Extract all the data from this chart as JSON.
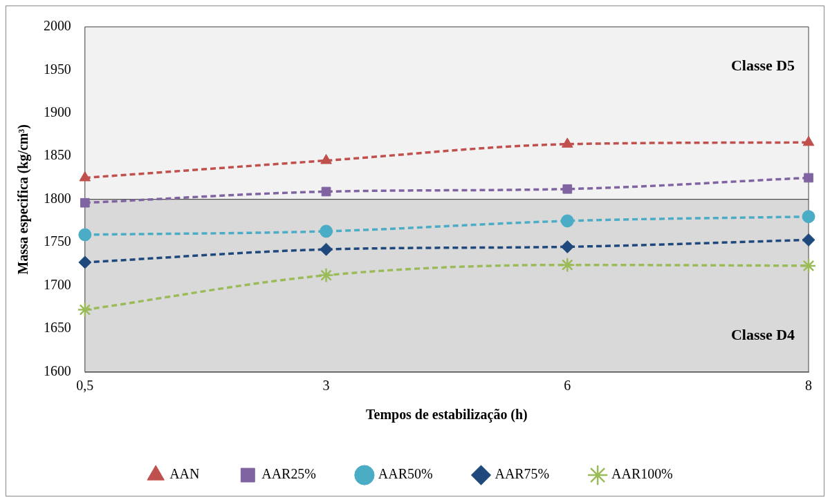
{
  "chart_data": {
    "type": "line",
    "xlabel": "Tempos de estabilização (h)",
    "ylabel": "Massa especifica (kg/cm³)",
    "categories": [
      "0,5",
      "3",
      "6",
      "8"
    ],
    "ylim": [
      1600,
      2000
    ],
    "yticks": [
      1600,
      1650,
      1700,
      1750,
      1800,
      1850,
      1900,
      1950,
      2000
    ],
    "grid": false,
    "legend": "bottom",
    "line_style": "dashed",
    "series": [
      {
        "name": "AAN",
        "color": "#c0504d",
        "marker": "triangle",
        "values": [
          1825,
          1845,
          1864,
          1866
        ]
      },
      {
        "name": "AAR25%",
        "color": "#8064a2",
        "marker": "square",
        "values": [
          1796,
          1809,
          1812,
          1825
        ]
      },
      {
        "name": "AAR50%",
        "color": "#4bacc6",
        "marker": "circle",
        "values": [
          1759,
          1763,
          1775,
          1780
        ]
      },
      {
        "name": "AAR75%",
        "color": "#1f497d",
        "marker": "diamond",
        "values": [
          1727,
          1742,
          1745,
          1753
        ]
      },
      {
        "name": "AAR100%",
        "color": "#9bbb59",
        "marker": "cross",
        "values": [
          1672,
          1712,
          1724,
          1723
        ]
      }
    ],
    "bands": [
      {
        "axis": "y",
        "from": 1800,
        "to": 2000,
        "label": "Classe D5",
        "color": "#f2f2f2"
      },
      {
        "axis": "y",
        "from": 1600,
        "to": 1800,
        "label": "Classe D4",
        "color": "#d9d9d9"
      }
    ]
  }
}
